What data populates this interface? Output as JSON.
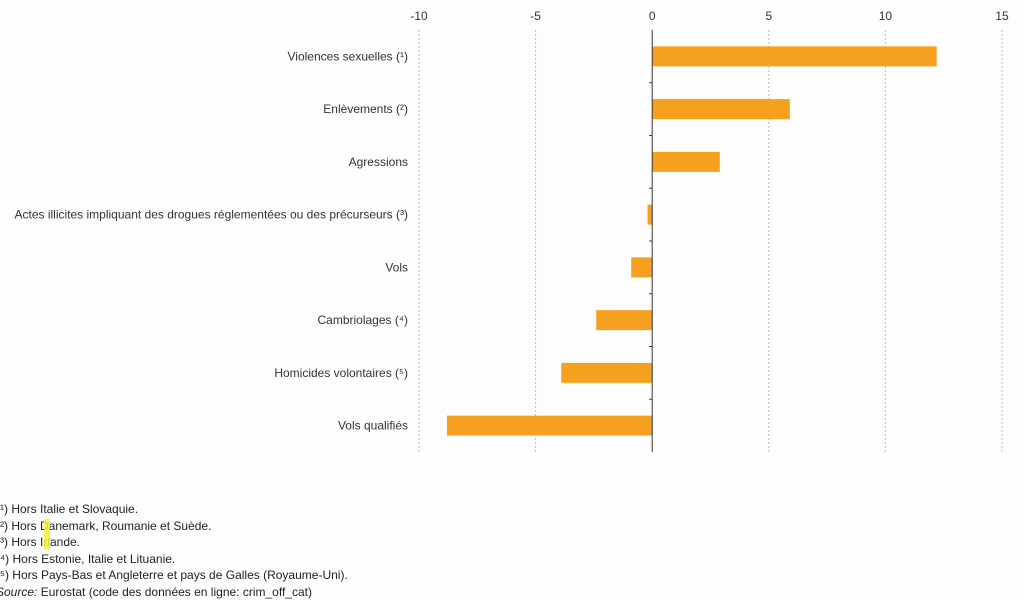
{
  "chart_data": {
    "type": "bar",
    "orientation": "horizontal",
    "categories": [
      "Violences sexuelles (¹)",
      "Enlèvements (²)",
      "Agressions",
      "Actes illicites impliquant des drogues réglementées ou des précurseurs (³)",
      "Vols",
      "Cambriolages (⁴)",
      "Homicides volontaires (⁵)",
      "Vols qualifiés"
    ],
    "values": [
      12.2,
      5.9,
      2.9,
      -0.2,
      -0.9,
      -2.4,
      -3.9,
      -8.8
    ],
    "xlim": [
      -10,
      15
    ],
    "xticks": [
      "-10",
      "-5",
      "0",
      "5",
      "10",
      "15"
    ],
    "xtick_values": [
      -10,
      -5,
      0,
      5,
      10,
      15
    ],
    "axis_position": "top",
    "grid": "vertical dashed",
    "bar_color": "#f5a01e",
    "title": "",
    "xlabel": "",
    "ylabel": ""
  },
  "footnotes": [
    "(¹) Hors Italie et Slovaquie.",
    "(²) Hors Danemark, Roumanie et Suède.",
    "(³) Hors Irlande.",
    "(⁴) Hors Estonie, Italie et Lituanie.",
    "(⁵) Hors Pays-Bas et Angleterre et pays de Galles (Royaume-Uni)."
  ],
  "source": {
    "label": "Source:",
    "text": " Eurostat (code des données en ligne: crim_off_cat)"
  }
}
